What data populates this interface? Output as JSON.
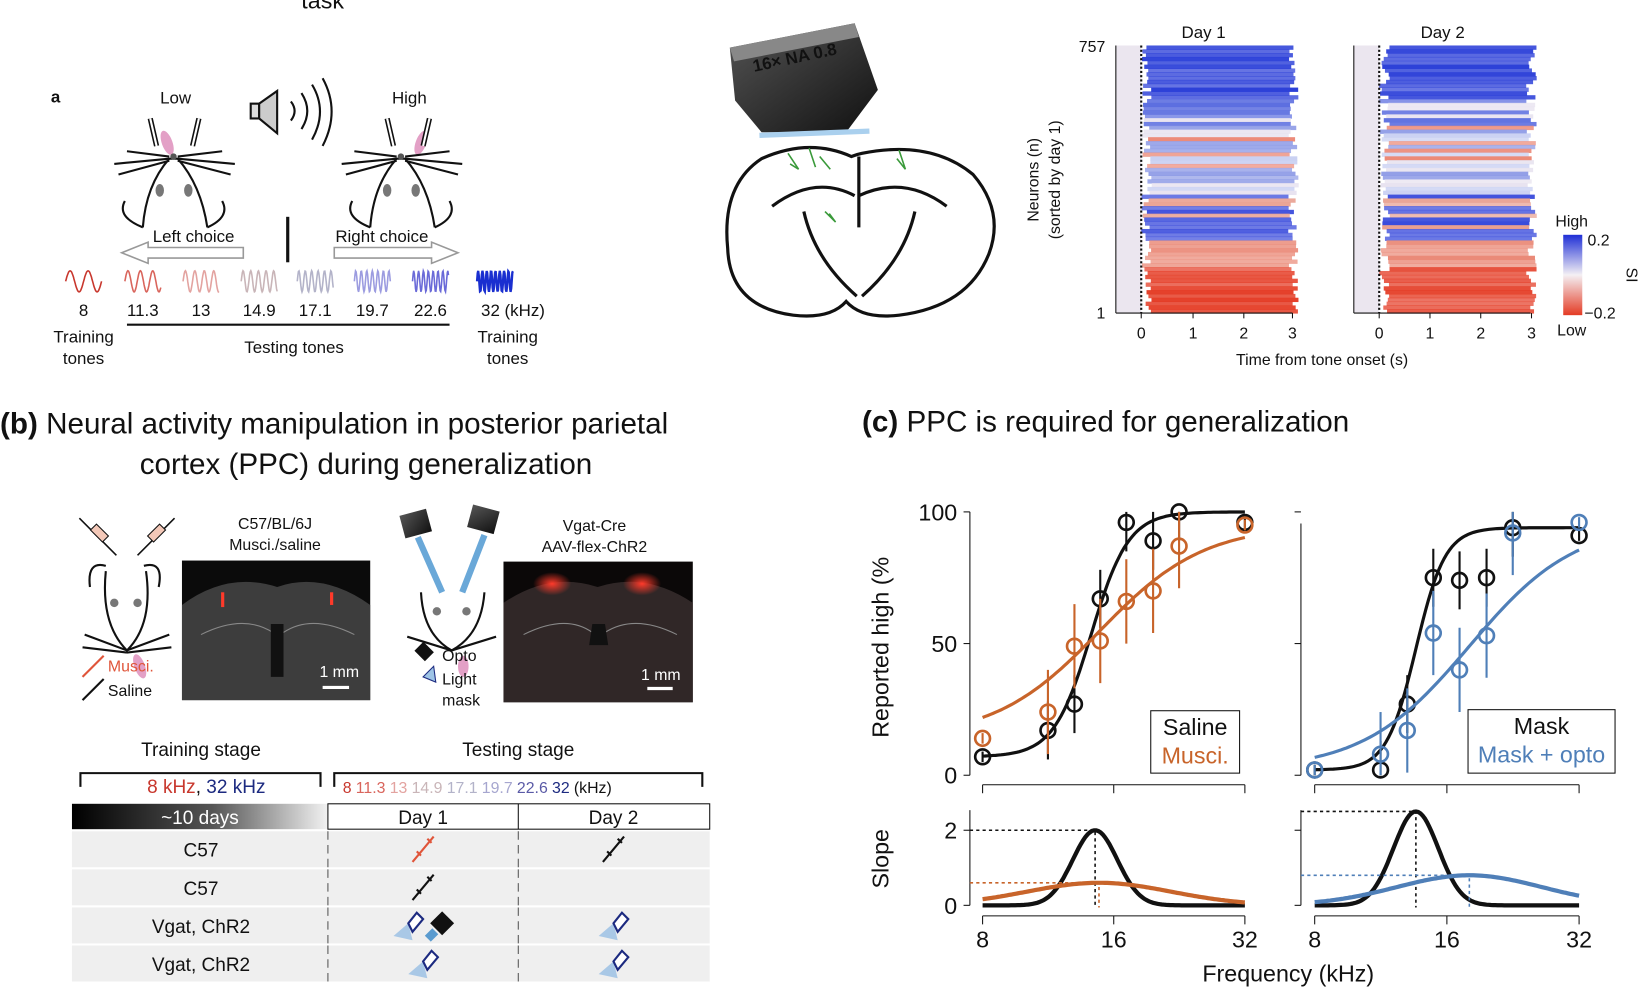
{
  "panel_a": {
    "top_title_fragment": "task",
    "label": "a",
    "low": "Low",
    "high": "High",
    "left_choice": "Left choice",
    "right_choice": "Right choice",
    "tones": [
      {
        "label": "8",
        "color": "#c8372d"
      },
      {
        "label": "11.3",
        "color": "#d9655c"
      },
      {
        "label": "13",
        "color": "#e3a3a0"
      },
      {
        "label": "14.9",
        "color": "#c9b5b8"
      },
      {
        "label": "17.1",
        "color": "#b3b3c9"
      },
      {
        "label": "19.7",
        "color": "#9c9ce0"
      },
      {
        "label": "22.6",
        "color": "#6a6ad8"
      },
      {
        "label": "32 (kHz)",
        "color": "#1a2fd0"
      }
    ],
    "training_tones": "Training",
    "training_tones_2": "tones",
    "testing_tones": "Testing tones",
    "objective_label": "16× NA 0.8",
    "objective_label_color": "#e08a2a"
  },
  "heatmap": {
    "titles": [
      "Day 1",
      "Day 2"
    ],
    "y_top": "757",
    "y_bottom": "1",
    "ylabel_1": "Neurons (n)",
    "ylabel_2": "(sorted by day 1)",
    "x_ticks": [
      "0",
      "1",
      "2",
      "3"
    ],
    "xlabel": "Time from tone onset (s)",
    "colorbar": {
      "high": "High",
      "low": "Low",
      "max": "0.2",
      "min": "−0.2",
      "label": "SI",
      "high_color": "#1f2fd6",
      "low_color": "#e43b24"
    }
  },
  "panel_b": {
    "title_prefix": "(b)",
    "title_line1": "Neural activity manipulation in posterior parietal",
    "title_line2": "cortex (PPC) during generalization",
    "img1_line1": "C57/BL/6J",
    "img1_line2": "Musci./saline",
    "img2_line1": "Vgat-Cre",
    "img2_line2": "AAV-flex-ChR2",
    "scale_bar": "1 mm",
    "legend_musci": "Musci.",
    "legend_saline": "Saline",
    "legend_opto": "Opto",
    "legend_light": "Light",
    "legend_mask": "mask",
    "table": {
      "training_stage": "Training stage",
      "testing_stage": "Testing stage",
      "training_tone_8": "8 kHz",
      "training_sep": ",",
      "training_tone_32": "32 kHz",
      "testing_tones": [
        {
          "label": "8",
          "color": "#c8372d"
        },
        {
          "label": "11.3",
          "color": "#d9655c"
        },
        {
          "label": "13",
          "color": "#e3a3a0"
        },
        {
          "label": "14.9",
          "color": "#c9b5b8"
        },
        {
          "label": "17.1",
          "color": "#b3b3c9"
        },
        {
          "label": "19.7",
          "color": "#a6a6cf"
        },
        {
          "label": "22.6",
          "color": "#5a5aa6"
        },
        {
          "label": "32",
          "color": "#1c2a80"
        },
        {
          "label": "(kHz)",
          "color": "#111111"
        }
      ],
      "duration": "~10 days",
      "day1": "Day 1",
      "day2": "Day 2",
      "rows": [
        {
          "group": "C57",
          "day1": [
            "syringe-musci"
          ],
          "day2": [
            "syringe-saline"
          ]
        },
        {
          "group": "C57",
          "day1": [
            "syringe-saline"
          ],
          "day2": []
        },
        {
          "group": "Vgat, ChR2",
          "day1": [
            "light-mask",
            "opto"
          ],
          "day2": [
            "light-mask"
          ]
        },
        {
          "group": "Vgat, ChR2",
          "day1": [
            "light-mask"
          ],
          "day2": [
            "light-mask"
          ]
        }
      ]
    }
  },
  "panel_c": {
    "title_prefix": "(c)",
    "title": "PPC is required for generalization"
  },
  "chart_data": [
    {
      "type": "line",
      "panel": "c-left-top",
      "x": [
        8,
        11.3,
        13,
        14.9,
        17.1,
        19.7,
        22.6,
        32
      ],
      "x_ticks": [
        "8",
        "16",
        "32"
      ],
      "x_scale": "log2",
      "ylabel": "Reported high (%",
      "y_ticks": [
        "0",
        "50",
        "100"
      ],
      "ylim": [
        0,
        100
      ],
      "legend": "bottom-right",
      "series": [
        {
          "name": "Saline",
          "color": "#111111",
          "values": [
            7,
            17,
            27,
            67,
            96,
            89,
            100,
            96
          ]
        },
        {
          "name": "Musci.",
          "color": "#c8642a",
          "values": [
            14,
            24,
            49,
            51,
            66,
            70,
            87,
            95
          ]
        }
      ]
    },
    {
      "type": "line",
      "panel": "c-right-top",
      "x": [
        8,
        11.3,
        13,
        14.9,
        17.1,
        19.7,
        22.6,
        32
      ],
      "x_ticks": [
        "8",
        "16",
        "32"
      ],
      "x_scale": "log2",
      "ylim": [
        0,
        100
      ],
      "legend": "bottom-right",
      "series": [
        {
          "name": "Mask",
          "color": "#111111",
          "values": [
            2,
            2,
            27,
            75,
            74,
            75,
            94,
            91
          ]
        },
        {
          "name": "Mask + opto",
          "color": "#4f7fb8",
          "values": [
            2,
            8,
            17,
            54,
            40,
            53,
            92,
            96
          ]
        }
      ]
    },
    {
      "type": "line",
      "panel": "c-left-bottom",
      "ylabel": "Slope",
      "y_ticks": [
        "0",
        "2"
      ],
      "ylim": [
        0,
        2.5
      ],
      "x_ticks": [
        "8",
        "16",
        "32"
      ],
      "series": [
        {
          "color": "#111111",
          "peak": 2.0,
          "peak_x": 14.5
        },
        {
          "color": "#c8642a",
          "peak": 0.6,
          "peak_x": 14.8
        }
      ]
    },
    {
      "type": "line",
      "panel": "c-right-bottom",
      "ylim": [
        0,
        2.5
      ],
      "x_ticks": [
        "8",
        "16",
        "32"
      ],
      "xlabel": "Frequency (kHz)",
      "series": [
        {
          "color": "#111111",
          "peak": 2.5,
          "peak_x": 13.6
        },
        {
          "color": "#4f7fb8",
          "peak": 0.8,
          "peak_x": 18
        }
      ]
    }
  ]
}
